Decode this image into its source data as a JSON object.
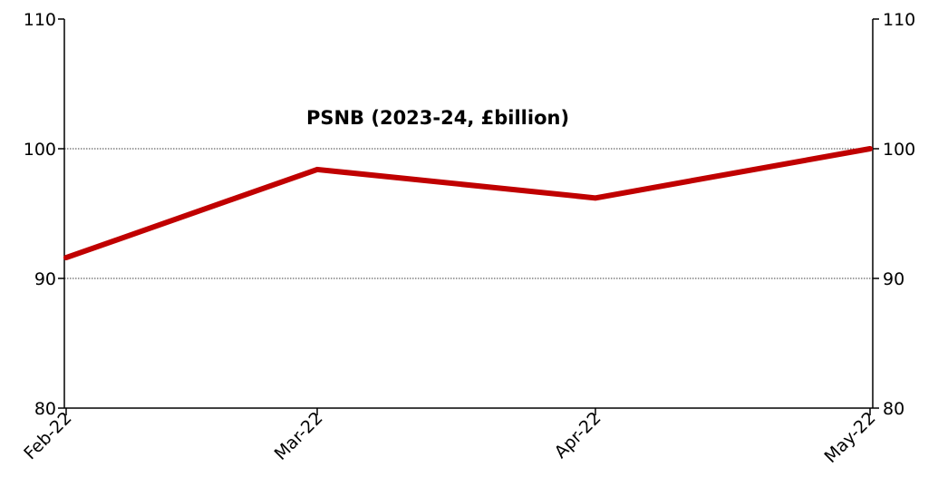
{
  "chart_data": {
    "type": "line",
    "title": "PSNB (2023-24, £billion)",
    "xlabel": "",
    "ylabel": "",
    "categories": [
      "Feb-22",
      "Mar-22",
      "Apr-22",
      "May-22"
    ],
    "series": [
      {
        "values": [
          91.6,
          98.4,
          96.2,
          100.0
        ],
        "color": "#C00000"
      }
    ],
    "ylim": [
      80,
      110
    ],
    "yticks": [
      80,
      90,
      100,
      110
    ],
    "secondary_y_axis": true,
    "gridlines": [
      90,
      100
    ],
    "grid": "horizontal dotted at 90 and 100",
    "legend": "none"
  }
}
